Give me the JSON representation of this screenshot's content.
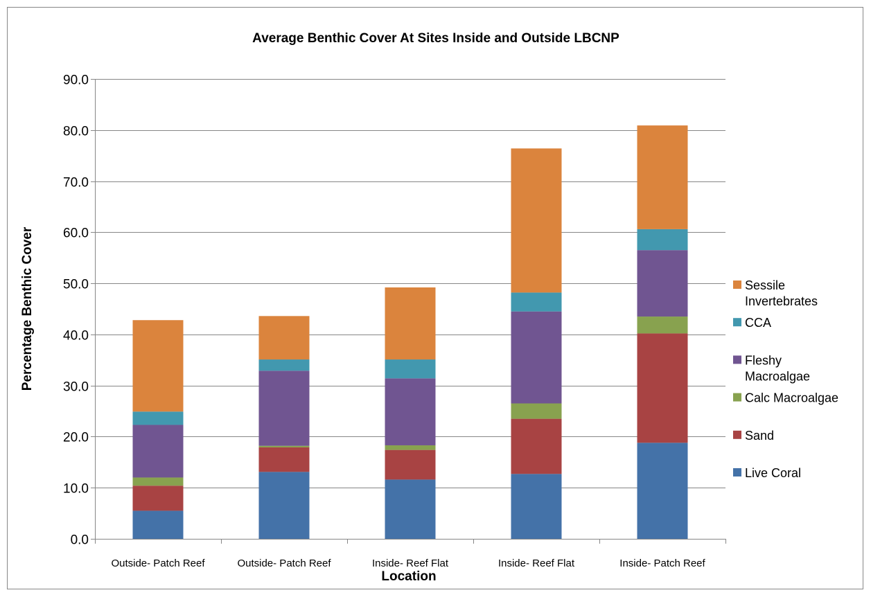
{
  "chart_data": {
    "type": "bar",
    "stacked": true,
    "title": "Average Benthic Cover At Sites Inside and Outside LBCNP",
    "xlabel": "Location",
    "ylabel": "Percentage Benthic Cover",
    "categories": [
      "Outside- Patch Reef",
      "Outside- Patch Reef",
      "Inside- Reef Flat",
      "Inside- Reef Flat",
      "Inside- Patch Reef"
    ],
    "ylim": [
      0,
      90
    ],
    "yticks": [
      "0.0",
      "10.0",
      "20.0",
      "30.0",
      "40.0",
      "50.0",
      "60.0",
      "70.0",
      "80.0",
      "90.0"
    ],
    "grid": true,
    "legend_position": "right",
    "series": [
      {
        "name": "Live Coral",
        "color": "#4472A8",
        "values": [
          5.5,
          13.1,
          11.6,
          12.7,
          18.8
        ]
      },
      {
        "name": "Sand",
        "color": "#A84343",
        "values": [
          4.9,
          4.8,
          5.8,
          10.8,
          21.4
        ]
      },
      {
        "name": "Calc Macroalgae",
        "color": "#88A24F",
        "values": [
          1.6,
          0.3,
          0.9,
          3.0,
          3.3
        ]
      },
      {
        "name": "Fleshy Macroalgae",
        "color": "#705591",
        "values": [
          10.3,
          14.7,
          13.1,
          18.0,
          13.0
        ]
      },
      {
        "name": "CCA",
        "color": "#4298AF",
        "values": [
          2.6,
          2.2,
          3.7,
          3.7,
          4.1
        ]
      },
      {
        "name": "Sessile Invertebrates",
        "color": "#DB843D",
        "values": [
          17.9,
          8.5,
          14.1,
          28.2,
          20.3
        ]
      }
    ],
    "legend_lines": {
      "Sessile Invertebrates": [
        "Sessile",
        "Invertebrates"
      ],
      "CCA": [
        "CCA"
      ],
      "Fleshy Macroalgae": [
        "Fleshy",
        "Macroalgae"
      ],
      "Calc Macroalgae": [
        "Calc Macroalgae"
      ],
      "Sand": [
        "Sand"
      ],
      "Live Coral": [
        "Live Coral"
      ]
    }
  }
}
